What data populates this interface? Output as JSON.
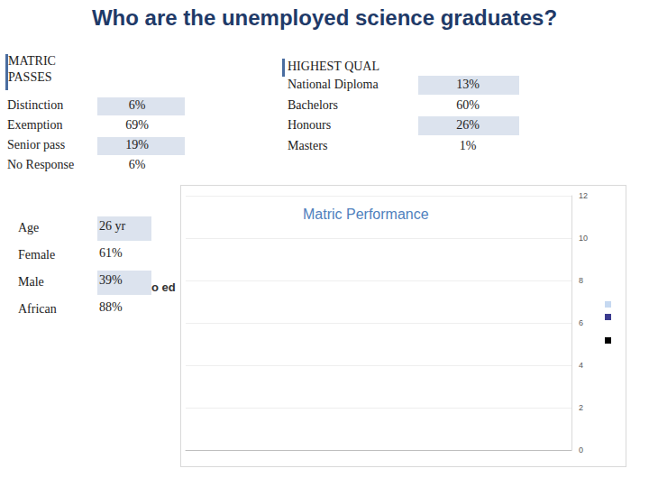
{
  "title": "Who are the unemployed science graduates?",
  "matric": {
    "heading": [
      "MATRIC",
      "PASSES"
    ],
    "rows": [
      [
        "Distinction",
        "6%"
      ],
      [
        "Exemption",
        "69%"
      ],
      [
        "Senior pass",
        "19%"
      ],
      [
        "No Response",
        "6%"
      ]
    ]
  },
  "highest_qual": {
    "heading": "HIGHEST QUAL",
    "rows": [
      [
        "National Diploma",
        "13%"
      ],
      [
        "Bachelors",
        "60%"
      ],
      [
        "Honours",
        "26%"
      ],
      [
        "Masters",
        "1%"
      ]
    ]
  },
  "demographics": {
    "rows": [
      [
        "Age",
        "26 yr"
      ],
      [
        "Female",
        "61%"
      ],
      [
        "Male",
        "39%"
      ],
      [
        "African",
        "88%"
      ]
    ]
  },
  "fragment": "o ed",
  "chart_data": {
    "type": "bar",
    "title": "Matric Performance",
    "categories": [],
    "series": [
      {
        "color": "#c6d9f1",
        "values": []
      },
      {
        "color": "#3b3b8f",
        "values": []
      },
      {
        "color": "#000000",
        "values": []
      }
    ],
    "ylim": [
      0,
      12
    ],
    "yticks": [
      0,
      2,
      4,
      6,
      8,
      10,
      12
    ],
    "grid": true
  }
}
